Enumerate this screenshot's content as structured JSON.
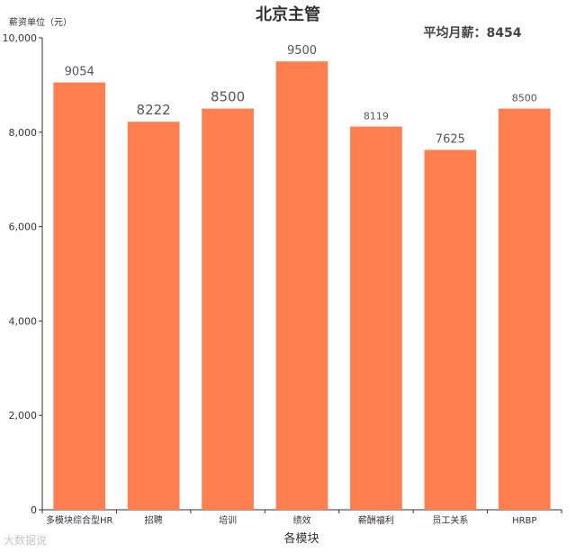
{
  "chart_data": {
    "type": "bar",
    "title": "北京主管",
    "subtitle": "平均月薪：8454",
    "ylabel": "薪资单位（元）",
    "xlabel": "各模块",
    "categories": [
      "多模块综合型HR",
      "招聘",
      "培训",
      "绩效",
      "薪酬福利",
      "员工关系",
      "HRBP"
    ],
    "values": [
      9054,
      8222,
      8500,
      9500,
      8119,
      7625,
      8500
    ],
    "data_labels": [
      "9054",
      "8222",
      "8500",
      "9500",
      "8119",
      "7625",
      "8500"
    ],
    "ylim": [
      0,
      10000
    ],
    "yticks": [
      0,
      2000,
      4000,
      6000,
      8000,
      10000
    ],
    "ytick_labels": [
      "0",
      "2,000",
      "4,000",
      "6,000",
      "8,000",
      "10,000"
    ],
    "grid": false,
    "legend": "none",
    "bar_color": "#ff7f50"
  },
  "watermark": "大数据说"
}
